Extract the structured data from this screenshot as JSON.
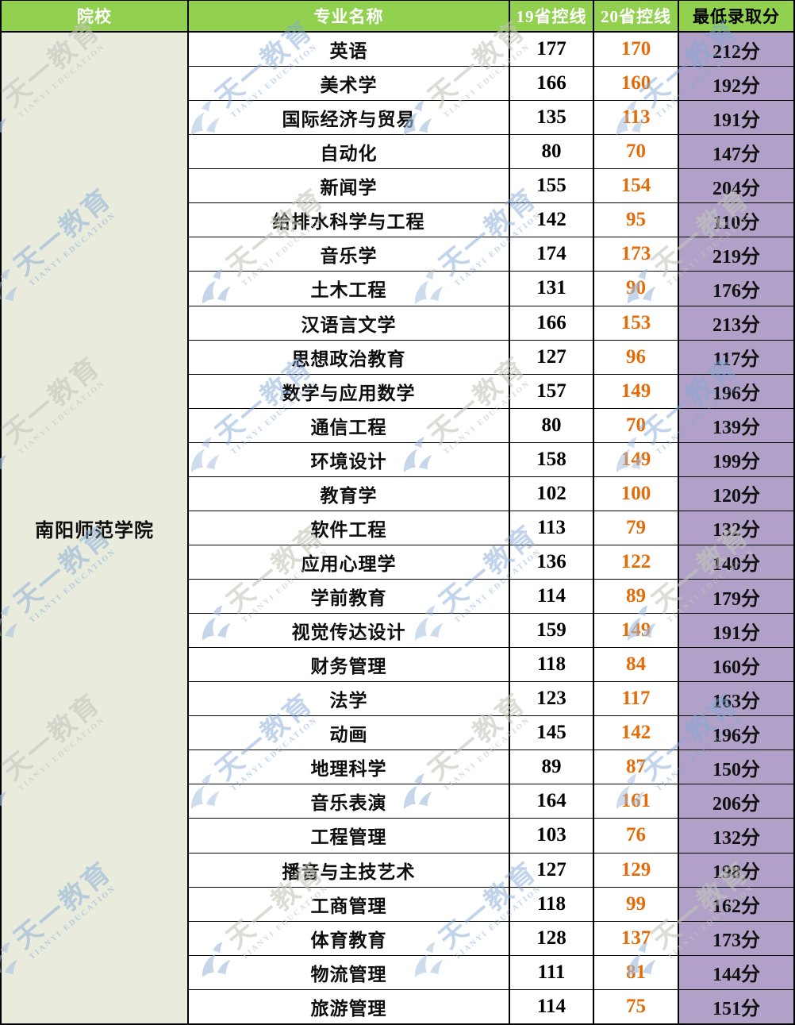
{
  "colors": {
    "header_bg": "#92D050",
    "institution_bg": "#E9EBDC",
    "min_score_bg": "#B1A0C7",
    "line20_text": "#E36C09",
    "header_text": "#FFFFFF",
    "border": "#000000"
  },
  "watermark": {
    "cn": "天一教育",
    "en": "TIANYI EDUCATION",
    "blue": "#84ABD8",
    "gray": "#C3C7BB"
  },
  "table": {
    "headers": [
      "院校",
      "专业名称",
      "19省控线",
      "20省控线",
      "最低录取分"
    ],
    "institution": "南阳师范学院",
    "rows": [
      {
        "major": "英语",
        "line19": "177",
        "line20": "170",
        "min": "212分"
      },
      {
        "major": "美术学",
        "line19": "166",
        "line20": "160",
        "min": "192分"
      },
      {
        "major": "国际经济与贸易",
        "line19": "135",
        "line20": "113",
        "min": "191分"
      },
      {
        "major": "自动化",
        "line19": "80",
        "line20": "70",
        "min": "147分"
      },
      {
        "major": "新闻学",
        "line19": "155",
        "line20": "154",
        "min": "204分"
      },
      {
        "major": "给排水科学与工程",
        "line19": "142",
        "line20": "95",
        "min": "110分"
      },
      {
        "major": "音乐学",
        "line19": "174",
        "line20": "173",
        "min": "219分"
      },
      {
        "major": "土木工程",
        "line19": "131",
        "line20": "90",
        "min": "176分"
      },
      {
        "major": "汉语言文学",
        "line19": "166",
        "line20": "153",
        "min": "213分"
      },
      {
        "major": "思想政治教育",
        "line19": "127",
        "line20": "96",
        "min": "117分"
      },
      {
        "major": "数学与应用数学",
        "line19": "157",
        "line20": "149",
        "min": "196分"
      },
      {
        "major": "通信工程",
        "line19": "80",
        "line20": "70",
        "min": "139分"
      },
      {
        "major": "环境设计",
        "line19": "158",
        "line20": "149",
        "min": "199分"
      },
      {
        "major": "教育学",
        "line19": "102",
        "line20": "100",
        "min": "120分"
      },
      {
        "major": "软件工程",
        "line19": "113",
        "line20": "79",
        "min": "132分"
      },
      {
        "major": "应用心理学",
        "line19": "136",
        "line20": "122",
        "min": "140分"
      },
      {
        "major": "学前教育",
        "line19": "114",
        "line20": "89",
        "min": "179分"
      },
      {
        "major": "视觉传达设计",
        "line19": "159",
        "line20": "149",
        "min": "191分"
      },
      {
        "major": "财务管理",
        "line19": "118",
        "line20": "84",
        "min": "160分"
      },
      {
        "major": "法学",
        "line19": "123",
        "line20": "117",
        "min": "163分"
      },
      {
        "major": "动画",
        "line19": "145",
        "line20": "142",
        "min": "196分"
      },
      {
        "major": "地理科学",
        "line19": "89",
        "line20": "87",
        "min": "150分"
      },
      {
        "major": "音乐表演",
        "line19": "164",
        "line20": "161",
        "min": "206分"
      },
      {
        "major": "工程管理",
        "line19": "103",
        "line20": "76",
        "min": "132分"
      },
      {
        "major": "播音与主技艺术",
        "line19": "127",
        "line20": "129",
        "min": "198分"
      },
      {
        "major": "工商管理",
        "line19": "118",
        "line20": "99",
        "min": "162分"
      },
      {
        "major": "体育教育",
        "line19": "128",
        "line20": "137",
        "min": "173分"
      },
      {
        "major": "物流管理",
        "line19": "111",
        "line20": "81",
        "min": "144分"
      },
      {
        "major": "旅游管理",
        "line19": "114",
        "line20": "75",
        "min": "151分"
      }
    ]
  }
}
